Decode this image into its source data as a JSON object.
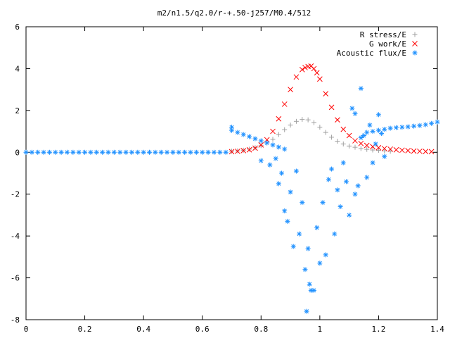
{
  "chart_data": {
    "type": "scatter",
    "title": "m2/n1.5/q2.0/r-+.50-j257/M0.4/512",
    "xlabel": "",
    "ylabel": "",
    "xlim": [
      0,
      1.4
    ],
    "ylim": [
      -8,
      6
    ],
    "xticks": [
      "0",
      "0.2",
      "0.4",
      "0.6",
      "0.8",
      "1",
      "1.2",
      "1.4"
    ],
    "yticks": [
      "-8",
      "-6",
      "-4",
      "-2",
      "0",
      "2",
      "4",
      "6"
    ],
    "grid": false,
    "legend_position": "top-right",
    "series": [
      {
        "name": "R stress/E",
        "marker": "plus",
        "color": "#a0a0a0",
        "x": [
          0.7,
          0.72,
          0.74,
          0.76,
          0.78,
          0.8,
          0.82,
          0.84,
          0.86,
          0.88,
          0.9,
          0.92,
          0.94,
          0.96,
          0.98,
          1.0,
          1.02,
          1.04,
          1.06,
          1.08,
          1.1,
          1.12,
          1.14,
          1.16,
          1.18,
          1.2,
          1.22,
          1.24
        ],
        "y": [
          0.05,
          0.07,
          0.1,
          0.15,
          0.22,
          0.32,
          0.45,
          0.62,
          0.85,
          1.08,
          1.3,
          1.48,
          1.57,
          1.55,
          1.42,
          1.2,
          0.95,
          0.72,
          0.53,
          0.4,
          0.3,
          0.24,
          0.18,
          0.14,
          0.11,
          0.09,
          0.07,
          0.05
        ]
      },
      {
        "name": "G work/E",
        "marker": "cross",
        "color": "#ff0000",
        "x": [
          0.7,
          0.72,
          0.74,
          0.76,
          0.78,
          0.8,
          0.82,
          0.84,
          0.86,
          0.88,
          0.9,
          0.92,
          0.94,
          0.95,
          0.96,
          0.97,
          0.98,
          0.99,
          1.0,
          1.02,
          1.04,
          1.06,
          1.08,
          1.1,
          1.12,
          1.14,
          1.16,
          1.18,
          1.2,
          1.22,
          1.24,
          1.26,
          1.28,
          1.3,
          1.32,
          1.34,
          1.36,
          1.38
        ],
        "y": [
          0.03,
          0.05,
          0.08,
          0.12,
          0.2,
          0.35,
          0.6,
          1.0,
          1.6,
          2.3,
          3.0,
          3.6,
          3.95,
          4.05,
          4.1,
          4.12,
          4.0,
          3.8,
          3.5,
          2.8,
          2.15,
          1.55,
          1.1,
          0.8,
          0.55,
          0.42,
          0.33,
          0.27,
          0.22,
          0.18,
          0.15,
          0.12,
          0.1,
          0.08,
          0.06,
          0.05,
          0.04,
          0.03
        ]
      },
      {
        "name": "Acoustic flux/E",
        "marker": "star",
        "color": "#1e90ff",
        "x": [
          0.0,
          0.02,
          0.04,
          0.06,
          0.08,
          0.1,
          0.12,
          0.14,
          0.16,
          0.18,
          0.2,
          0.22,
          0.24,
          0.26,
          0.28,
          0.3,
          0.32,
          0.34,
          0.36,
          0.38,
          0.4,
          0.42,
          0.44,
          0.46,
          0.48,
          0.5,
          0.52,
          0.54,
          0.56,
          0.58,
          0.6,
          0.62,
          0.64,
          0.66,
          0.68,
          0.7,
          0.7,
          0.72,
          0.74,
          0.76,
          0.78,
          0.8,
          0.82,
          0.84,
          0.86,
          0.88,
          0.8,
          0.83,
          0.85,
          0.86,
          0.87,
          0.88,
          0.89,
          0.9,
          0.91,
          0.92,
          0.93,
          0.94,
          0.95,
          0.955,
          0.96,
          0.965,
          0.97,
          0.98,
          0.99,
          1.0,
          1.01,
          1.02,
          1.03,
          1.04,
          1.05,
          1.06,
          1.07,
          1.08,
          1.09,
          1.1,
          1.11,
          1.12,
          1.13,
          1.14,
          1.15,
          1.16,
          1.17,
          1.18,
          1.19,
          1.2,
          1.21,
          1.22,
          1.12,
          1.14,
          1.16,
          1.18,
          1.2,
          1.22,
          1.24,
          1.26,
          1.28,
          1.3,
          1.32,
          1.34,
          1.36,
          1.38,
          1.4
        ],
        "y": [
          0,
          0,
          0,
          0,
          0,
          0,
          0,
          0,
          0,
          0,
          0,
          0,
          0,
          0,
          0,
          0,
          0,
          0,
          0,
          0,
          0,
          0,
          0,
          0,
          0,
          0,
          0,
          0,
          0,
          0,
          0,
          0,
          0,
          0,
          0,
          1.2,
          1.05,
          0.95,
          0.85,
          0.75,
          0.65,
          0.55,
          0.45,
          0.35,
          0.25,
          0.15,
          -0.4,
          -0.6,
          -0.3,
          -1.5,
          -1.0,
          -2.8,
          -3.3,
          -1.9,
          -4.5,
          -0.9,
          -3.9,
          -2.4,
          -5.6,
          -7.6,
          -4.6,
          -6.3,
          -6.6,
          -6.6,
          -3.6,
          -5.3,
          -2.4,
          -4.9,
          -1.3,
          -0.8,
          -3.9,
          -1.8,
          -2.6,
          -0.5,
          -1.4,
          -3.0,
          2.1,
          -2.0,
          -1.6,
          3.05,
          0.8,
          -1.2,
          1.3,
          -0.5,
          0.4,
          1.8,
          0.9,
          -0.2,
          1.85,
          0.7,
          0.95,
          1.0,
          1.05,
          1.1,
          1.15,
          1.18,
          1.2,
          1.22,
          1.25,
          1.28,
          1.32,
          1.38,
          1.45
        ]
      }
    ]
  }
}
